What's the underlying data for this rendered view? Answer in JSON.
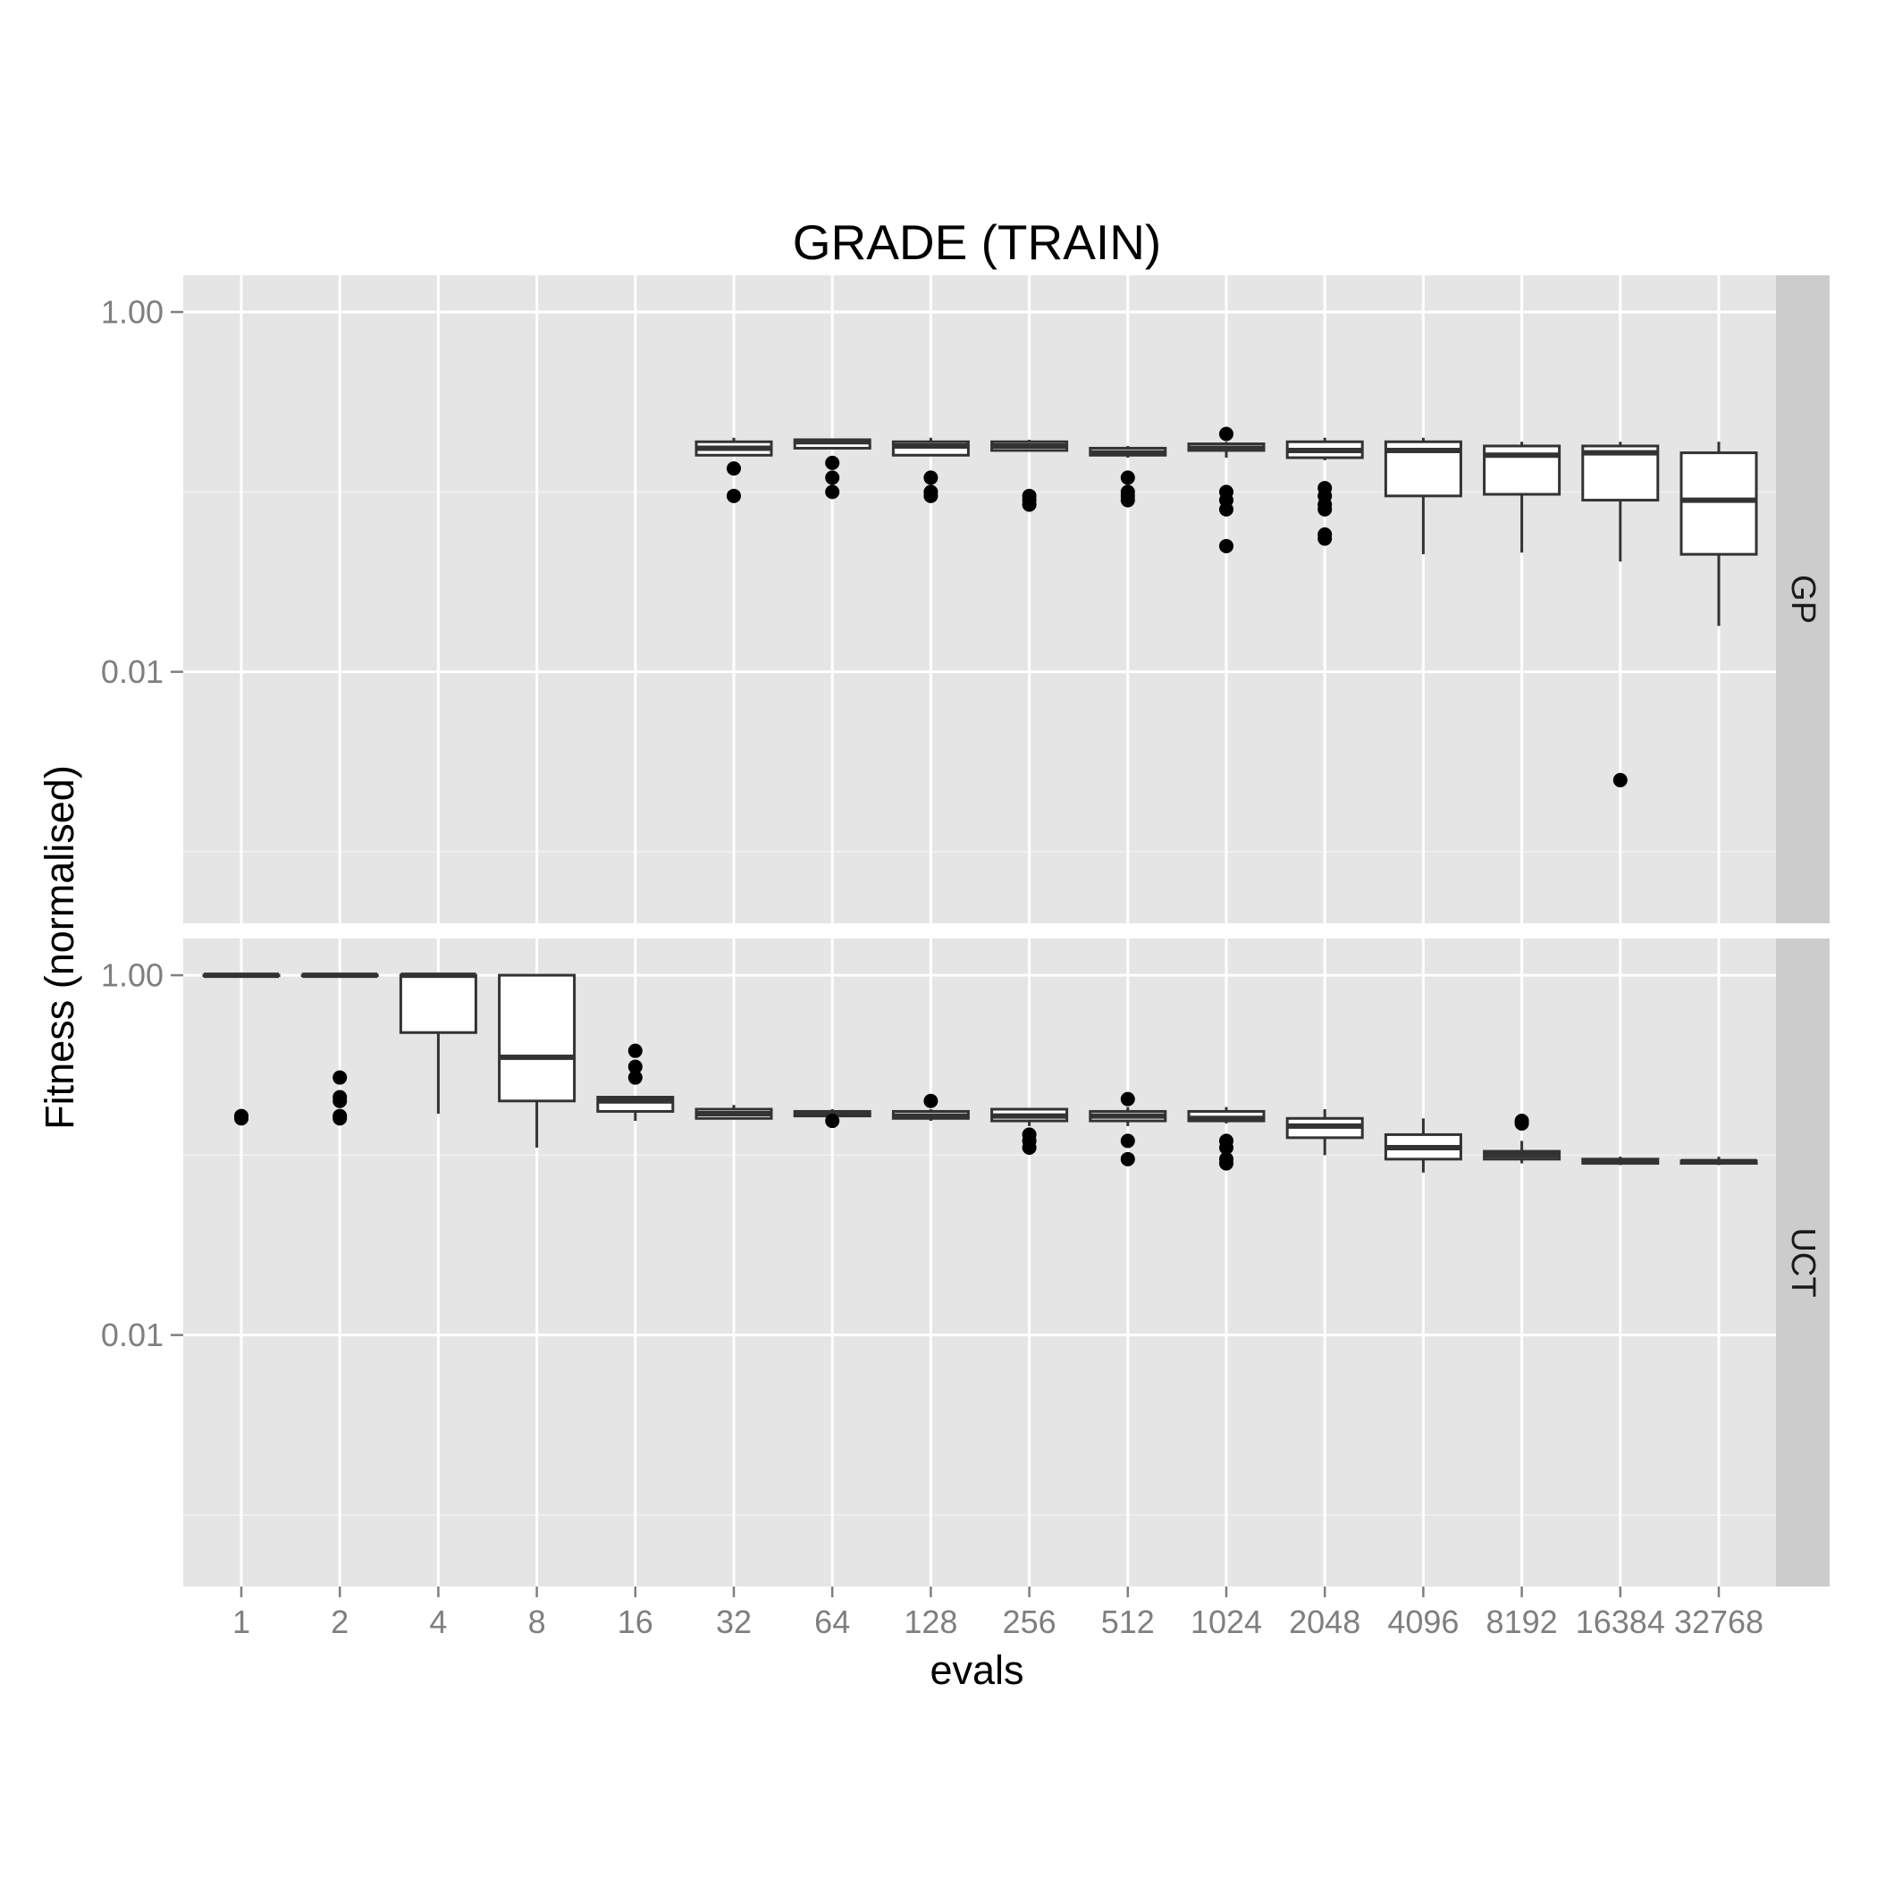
{
  "chart_data": {
    "type": "boxplot",
    "title": "GRADE (TRAIN)",
    "xlabel": "evals",
    "ylabel": "Fitness (normalised)",
    "y_scale": "log10",
    "ylim": [
      0.0004,
      1.6
    ],
    "y_ticks": [
      {
        "value": 1.0,
        "label": "1.00"
      },
      {
        "value": 0.01,
        "label": "0.01"
      }
    ],
    "y_minor_ticks": [
      0.1,
      0.001
    ],
    "categories": [
      "1",
      "2",
      "4",
      "8",
      "16",
      "32",
      "64",
      "128",
      "256",
      "512",
      "1024",
      "2048",
      "4096",
      "8192",
      "16384",
      "32768"
    ],
    "grid": true,
    "facets": [
      {
        "label": "GP",
        "boxes": [
          null,
          null,
          null,
          null,
          null,
          {
            "lower": 0.195,
            "q1": 0.16,
            "median": 0.175,
            "q3": 0.19,
            "upper": 0.2,
            "outliers": [
              0.135,
              0.095
            ]
          },
          {
            "lower": 0.18,
            "q1": 0.175,
            "median": 0.19,
            "q3": 0.195,
            "upper": 0.197,
            "outliers": [
              0.145,
              0.12,
              0.1
            ]
          },
          {
            "lower": 0.195,
            "q1": 0.16,
            "median": 0.18,
            "q3": 0.19,
            "upper": 0.2,
            "outliers": [
              0.12,
              0.1,
              0.095
            ]
          },
          {
            "lower": 0.17,
            "q1": 0.17,
            "median": 0.18,
            "q3": 0.19,
            "upper": 0.195,
            "outliers": [
              0.095,
              0.09,
              0.085
            ]
          },
          {
            "lower": 0.155,
            "q1": 0.16,
            "median": 0.165,
            "q3": 0.175,
            "upper": 0.18,
            "outliers": [
              0.12,
              0.1,
              0.095,
              0.09
            ]
          },
          {
            "lower": 0.155,
            "q1": 0.17,
            "median": 0.175,
            "q3": 0.185,
            "upper": 0.19,
            "outliers": [
              0.21,
              0.1,
              0.09,
              0.08,
              0.05
            ]
          },
          {
            "lower": 0.15,
            "q1": 0.155,
            "median": 0.17,
            "q3": 0.19,
            "upper": 0.2,
            "outliers": [
              0.105,
              0.095,
              0.085,
              0.08,
              0.058,
              0.055
            ]
          },
          {
            "lower": 0.045,
            "q1": 0.095,
            "median": 0.17,
            "q3": 0.19,
            "upper": 0.2,
            "outliers": []
          },
          {
            "lower": 0.046,
            "q1": 0.097,
            "median": 0.16,
            "q3": 0.18,
            "upper": 0.19,
            "outliers": []
          },
          {
            "lower": 0.041,
            "q1": 0.09,
            "median": 0.165,
            "q3": 0.18,
            "upper": 0.19,
            "outliers": [
              0.0025
            ]
          },
          {
            "lower": 0.018,
            "q1": 0.045,
            "median": 0.09,
            "q3": 0.165,
            "upper": 0.19,
            "outliers": []
          }
        ]
      },
      {
        "label": "UCT",
        "boxes": [
          {
            "lower": 1.0,
            "q1": 1.0,
            "median": 1.0,
            "q3": 1.0,
            "upper": 1.0,
            "outliers": [
              0.165,
              0.16
            ]
          },
          {
            "lower": 1.0,
            "q1": 1.0,
            "median": 1.0,
            "q3": 1.0,
            "upper": 1.0,
            "outliers": [
              0.27,
              0.21,
              0.2,
              0.165,
              0.16
            ]
          },
          {
            "lower": 0.17,
            "q1": 0.48,
            "median": 1.0,
            "q3": 1.0,
            "upper": 1.0,
            "outliers": []
          },
          {
            "lower": 0.11,
            "q1": 0.2,
            "median": 0.35,
            "q3": 1.0,
            "upper": 1.0,
            "outliers": []
          },
          {
            "lower": 0.155,
            "q1": 0.175,
            "median": 0.2,
            "q3": 0.21,
            "upper": 0.21,
            "outliers": [
              0.38,
              0.31,
              0.27
            ]
          },
          {
            "lower": 0.16,
            "q1": 0.16,
            "median": 0.17,
            "q3": 0.18,
            "upper": 0.19,
            "outliers": []
          },
          {
            "lower": 0.16,
            "q1": 0.165,
            "median": 0.17,
            "q3": 0.175,
            "upper": 0.18,
            "outliers": [
              0.155
            ]
          },
          {
            "lower": 0.155,
            "q1": 0.16,
            "median": 0.165,
            "q3": 0.175,
            "upper": 0.18,
            "outliers": [
              0.2
            ]
          },
          {
            "lower": 0.145,
            "q1": 0.155,
            "median": 0.165,
            "q3": 0.18,
            "upper": 0.18,
            "outliers": [
              0.13,
              0.12,
              0.11
            ]
          },
          {
            "lower": 0.145,
            "q1": 0.155,
            "median": 0.165,
            "q3": 0.175,
            "upper": 0.185,
            "outliers": [
              0.205,
              0.12,
              0.095
            ]
          },
          {
            "lower": 0.15,
            "q1": 0.155,
            "median": 0.16,
            "q3": 0.175,
            "upper": 0.185,
            "outliers": [
              0.12,
              0.11,
              0.095,
              0.09
            ]
          },
          {
            "lower": 0.1,
            "q1": 0.125,
            "median": 0.145,
            "q3": 0.16,
            "upper": 0.18,
            "outliers": []
          },
          {
            "lower": 0.08,
            "q1": 0.095,
            "median": 0.11,
            "q3": 0.13,
            "upper": 0.16,
            "outliers": []
          },
          {
            "lower": 0.09,
            "q1": 0.095,
            "median": 0.1,
            "q3": 0.105,
            "upper": 0.12,
            "outliers": [
              0.155,
              0.15
            ]
          },
          {
            "lower": 0.088,
            "q1": 0.09,
            "median": 0.092,
            "q3": 0.095,
            "upper": 0.098,
            "outliers": []
          },
          {
            "lower": 0.088,
            "q1": 0.09,
            "median": 0.092,
            "q3": 0.093,
            "upper": 0.098,
            "outliers": []
          }
        ]
      }
    ]
  },
  "colors": {
    "panel_background": "#e5e5e5",
    "strip_background": "#cccccc",
    "grid_major": "#ffffff",
    "grid_minor": "#f2f2f2",
    "box_outline": "#333333",
    "box_fill": "#ffffff",
    "outlier": "#000000",
    "tick_label": "#7f7f7f"
  }
}
